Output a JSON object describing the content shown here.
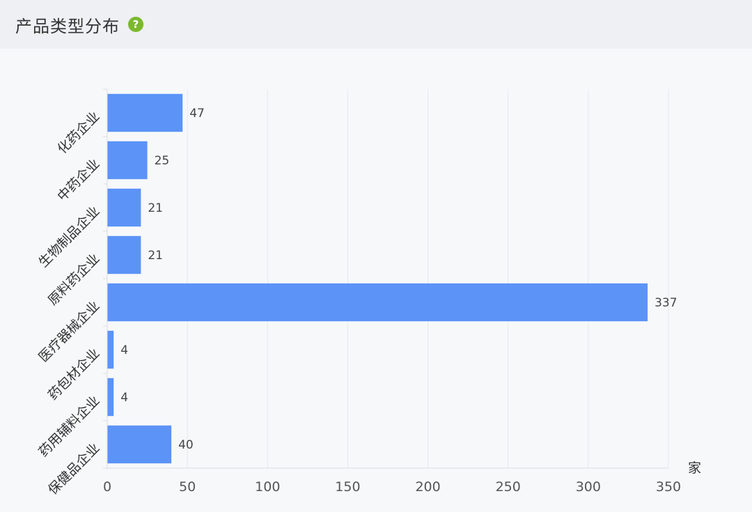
{
  "header": {
    "title": "产品类型分布",
    "help_icon": "question-circle-icon",
    "help_glyph": "?",
    "help_color": "#7cb82f"
  },
  "chart_data": {
    "type": "bar",
    "orientation": "horizontal",
    "categories": [
      "化药企业",
      "中药企业",
      "生物制品企业",
      "原料药企业",
      "医疗器械企业",
      "药包材企业",
      "药用辅料企业",
      "保健品企业"
    ],
    "values": [
      47,
      25,
      21,
      21,
      337,
      4,
      4,
      40
    ],
    "xlim": [
      0,
      350
    ],
    "xticks": [
      0,
      50,
      100,
      150,
      200,
      250,
      300,
      350
    ],
    "xunit": "家",
    "grid": true,
    "bar_color": "#5b93f7"
  }
}
